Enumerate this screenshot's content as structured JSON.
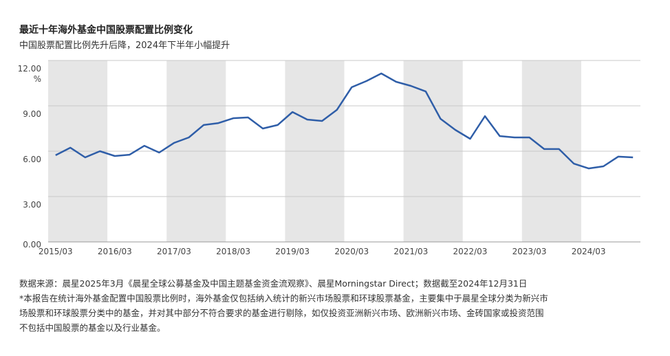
{
  "chart_data": {
    "type": "line",
    "title": "最近十年海外基金中国股票配置比例变化",
    "subtitle": "中国股票配置比例先升后降，2024年下半年小幅提升",
    "y_unit": "%",
    "categories": [
      "2015/03",
      null,
      null,
      null,
      "2016/03",
      null,
      null,
      null,
      "2017/03",
      null,
      null,
      null,
      "2018/03",
      null,
      null,
      null,
      "2019/03",
      null,
      null,
      null,
      "2020/03",
      null,
      null,
      null,
      "2021/03",
      null,
      null,
      null,
      "2022/03",
      null,
      null,
      null,
      "2023/03",
      null,
      null,
      null,
      "2024/03",
      null,
      null,
      null
    ],
    "series": [
      {
        "name": "中国股票配置比例",
        "color": "#2f5ea8",
        "values": [
          5.73,
          6.23,
          5.59,
          6.0,
          5.68,
          5.77,
          6.36,
          5.91,
          6.55,
          6.91,
          7.73,
          7.86,
          8.18,
          8.23,
          7.5,
          7.73,
          8.59,
          8.09,
          8.0,
          8.73,
          10.23,
          10.64,
          11.14,
          10.59,
          10.32,
          9.95,
          8.14,
          7.41,
          6.82,
          8.32,
          7.0,
          6.91,
          6.91,
          6.14,
          6.14,
          5.18,
          4.86,
          5.0,
          5.64,
          5.59
        ]
      }
    ],
    "ylim": [
      0,
      12
    ],
    "yticks": [
      {
        "value": 0,
        "label": "0.00"
      },
      {
        "value": 3,
        "label": "3.00"
      },
      {
        "value": 6,
        "label": "6.00"
      },
      {
        "value": 9,
        "label": "9.00"
      },
      {
        "value": 12,
        "label": "12.00"
      }
    ],
    "grid": true,
    "band_color": "#e6e6e6",
    "notes": [
      "数据来源：晨星2025年3月《晨星全球公募基金及中国主题基金资金流观察》、晨星Morningstar Direct；数据截至2024年12月31日",
      "*本报告在统计海外基金配置中国股票比例时，海外基金仅包括纳入统计的新兴市场股票和环球股票基金，主要集中于晨星全球分类为新兴市",
      "场股票和环球股票分类中的基金，并对其中部分不符合要求的基金进行剔除，如仅投资亚洲新兴市场、欧洲新兴市场、金砖国家或投资范围",
      "不包括中国股票的基金以及行业基金。"
    ]
  }
}
